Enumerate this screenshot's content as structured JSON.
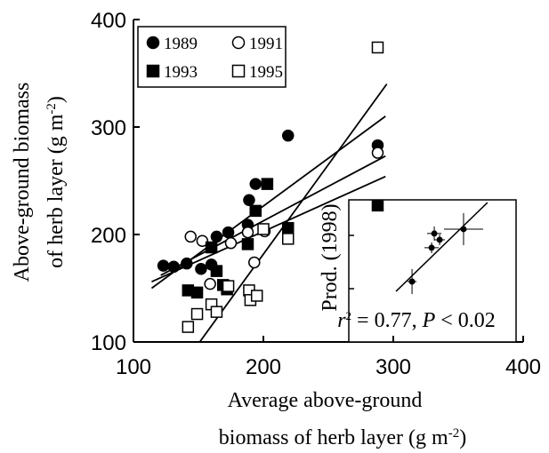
{
  "chart_data": {
    "type": "scatter",
    "xlabel": [
      "Average above-ground",
      "biomass of herb layer (g m",
      "-2",
      ")"
    ],
    "ylabel": [
      "Above-ground biomass",
      "of  herb layer (g m",
      "-2",
      ")"
    ],
    "xlim": [
      100,
      400
    ],
    "xticks": [
      100,
      200,
      300,
      400
    ],
    "ylim": [
      100,
      400
    ],
    "yticks": [
      100,
      200,
      300,
      400
    ],
    "series": [
      {
        "name": "1989",
        "color": "#000000",
        "marker": "circle",
        "filled": true,
        "x": [
          123,
          131,
          141,
          152,
          160,
          164,
          173,
          188,
          189,
          194,
          219,
          288
        ],
        "values": [
          171,
          170,
          173,
          168,
          172,
          198,
          202,
          209,
          232,
          247,
          292,
          283
        ]
      },
      {
        "name": "1991",
        "color": "#000000",
        "marker": "circle",
        "filled": false,
        "x": [
          144,
          153,
          159,
          175,
          188,
          193,
          201,
          219,
          288
        ],
        "values": [
          198,
          194,
          154,
          192,
          202,
          174,
          203,
          203,
          276
        ]
      },
      {
        "name": "1993",
        "color": "#000000",
        "marker": "square",
        "filled": true,
        "x": [
          142,
          149,
          160,
          164,
          169,
          172,
          188,
          194,
          203,
          219,
          288
        ],
        "values": [
          148,
          146,
          188,
          166,
          153,
          149,
          191,
          222,
          247,
          206,
          227
        ]
      },
      {
        "name": "1995",
        "color": "#000000",
        "marker": "square",
        "filled": false,
        "x": [
          142,
          149,
          160,
          164,
          173,
          189,
          190,
          195,
          200,
          219,
          288
        ],
        "values": [
          114,
          126,
          135,
          128,
          152,
          148,
          139,
          143,
          205,
          196,
          374
        ]
      }
    ],
    "fit_lines": [
      {
        "x": [
          151,
          295
        ],
        "values": [
          100,
          340
        ]
      },
      {
        "x": [
          114,
          294
        ],
        "values": [
          150,
          310
        ]
      },
      {
        "x": [
          114,
          294
        ],
        "values": [
          156,
          254
        ]
      },
      {
        "x": [
          121,
          294
        ],
        "values": [
          162,
          273
        ]
      }
    ],
    "inset": {
      "ylabel": "Prod. (1998)",
      "annotation": [
        "r",
        "2",
        " = 0.77, ",
        "P",
        " < 0.02"
      ],
      "xlim": [
        0,
        100
      ],
      "ylim": [
        0,
        100
      ],
      "yticks": [
        37.5,
        75
      ],
      "x": [
        37.8,
        49.5,
        54.3,
        51.1,
        68.6
      ],
      "values": [
        42.5,
        66.3,
        71.9,
        76.3,
        79.4
      ],
      "xerr": [
        2.7,
        4.3,
        3.2,
        4.3,
        11.7
      ],
      "yerr": [
        8.8,
        3.8,
        3.8,
        5,
        11.3
      ],
      "fit": {
        "x": [
          28.2,
          82.9
        ],
        "values": [
          35.6,
          98.1
        ]
      }
    }
  }
}
